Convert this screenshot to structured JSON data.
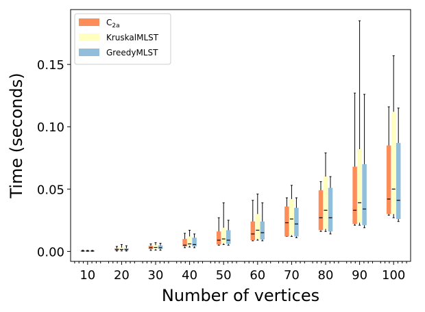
{
  "chart_data": {
    "type": "boxplot",
    "title": "",
    "xlabel": "Number of vertices",
    "ylabel": "Time (seconds)",
    "categories": [
      "10",
      "20",
      "30",
      "40",
      "50",
      "60",
      "70",
      "80",
      "90",
      "100"
    ],
    "ylim": [
      -0.008,
      0.194
    ],
    "yticks": [
      "0.00",
      "0.05",
      "0.10",
      "0.15"
    ],
    "ytick_values": [
      0,
      0.05,
      0.1,
      0.15
    ],
    "legend": {
      "position": "top-left"
    },
    "series": [
      {
        "name": "C2a",
        "label_main": "C",
        "label_sub": "2a",
        "color": "#fc8d59",
        "boxes": [
          {
            "min": 0.0001,
            "q1": 0.0002,
            "median": 0.0003,
            "q3": 0.0005,
            "max": 0.0009
          },
          {
            "min": 0.0003,
            "q1": 0.0009,
            "median": 0.0014,
            "q3": 0.0025,
            "max": 0.004
          },
          {
            "min": 0.0008,
            "q1": 0.0018,
            "median": 0.003,
            "q3": 0.0045,
            "max": 0.006
          },
          {
            "min": 0.003,
            "q1": 0.004,
            "median": 0.005,
            "q3": 0.01,
            "max": 0.0145
          },
          {
            "min": 0.005,
            "q1": 0.0055,
            "median": 0.009,
            "q3": 0.016,
            "max": 0.027
          },
          {
            "min": 0.0085,
            "q1": 0.009,
            "median": 0.014,
            "q3": 0.024,
            "max": 0.041
          },
          {
            "min": 0.012,
            "q1": 0.012,
            "median": 0.023,
            "q3": 0.036,
            "max": 0.043
          },
          {
            "min": 0.016,
            "q1": 0.017,
            "median": 0.027,
            "q3": 0.049,
            "max": 0.056
          },
          {
            "min": 0.021,
            "q1": 0.022,
            "median": 0.033,
            "q3": 0.068,
            "max": 0.127
          },
          {
            "min": 0.029,
            "q1": 0.03,
            "median": 0.042,
            "q3": 0.085,
            "max": 0.116
          }
        ]
      },
      {
        "name": "KruskalMLST",
        "color": "#ffffbf",
        "boxes": [
          {
            "min": 0.0001,
            "q1": 0.0002,
            "median": 0.0003,
            "q3": 0.0005,
            "max": 0.0008
          },
          {
            "min": 0.0004,
            "q1": 0.001,
            "median": 0.0016,
            "q3": 0.003,
            "max": 0.0055
          },
          {
            "min": 0.001,
            "q1": 0.002,
            "median": 0.0032,
            "q3": 0.005,
            "max": 0.007
          },
          {
            "min": 0.0035,
            "q1": 0.0045,
            "median": 0.006,
            "q3": 0.012,
            "max": 0.017
          },
          {
            "min": 0.0055,
            "q1": 0.0065,
            "median": 0.01,
            "q3": 0.019,
            "max": 0.039
          },
          {
            "min": 0.009,
            "q1": 0.01,
            "median": 0.017,
            "q3": 0.03,
            "max": 0.046
          },
          {
            "min": 0.012,
            "q1": 0.013,
            "median": 0.026,
            "q3": 0.042,
            "max": 0.053
          },
          {
            "min": 0.016,
            "q1": 0.018,
            "median": 0.033,
            "q3": 0.06,
            "max": 0.079
          },
          {
            "min": 0.021,
            "q1": 0.023,
            "median": 0.039,
            "q3": 0.082,
            "max": 0.185
          },
          {
            "min": 0.027,
            "q1": 0.03,
            "median": 0.05,
            "q3": 0.112,
            "max": 0.157
          }
        ]
      },
      {
        "name": "GreedyMLST",
        "color": "#91bfdb",
        "boxes": [
          {
            "min": 0.0001,
            "q1": 0.0002,
            "median": 0.0003,
            "q3": 0.0005,
            "max": 0.0008
          },
          {
            "min": 0.0003,
            "q1": 0.0009,
            "median": 0.0014,
            "q3": 0.0025,
            "max": 0.0045
          },
          {
            "min": 0.0009,
            "q1": 0.002,
            "median": 0.003,
            "q3": 0.0048,
            "max": 0.0065
          },
          {
            "min": 0.003,
            "q1": 0.004,
            "median": 0.0055,
            "q3": 0.011,
            "max": 0.014
          },
          {
            "min": 0.005,
            "q1": 0.006,
            "median": 0.009,
            "q3": 0.017,
            "max": 0.025
          },
          {
            "min": 0.0085,
            "q1": 0.0095,
            "median": 0.015,
            "q3": 0.024,
            "max": 0.039
          },
          {
            "min": 0.011,
            "q1": 0.012,
            "median": 0.022,
            "q3": 0.035,
            "max": 0.043
          },
          {
            "min": 0.014,
            "q1": 0.016,
            "median": 0.027,
            "q3": 0.051,
            "max": 0.06
          },
          {
            "min": 0.019,
            "q1": 0.021,
            "median": 0.034,
            "q3": 0.07,
            "max": 0.126
          },
          {
            "min": 0.024,
            "q1": 0.026,
            "median": 0.041,
            "q3": 0.087,
            "max": 0.115
          }
        ]
      }
    ]
  }
}
